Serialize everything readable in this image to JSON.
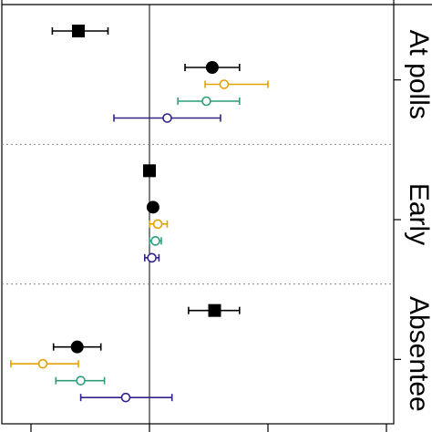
{
  "chart_data": {
    "type": "scatter",
    "title": "",
    "xlabel": "",
    "ylabel": "",
    "xlim": [
      -1.0,
      2.0
    ],
    "reference_line_x": 0,
    "panels": [
      {
        "label": "At polls",
        "rows": [
          {
            "marker": "filled-square",
            "color": "#000000",
            "value": -0.6,
            "lo": -0.82,
            "hi": -0.35
          },
          {
            "marker": "filled-circle",
            "color": "#000000",
            "value": 0.53,
            "lo": 0.3,
            "hi": 0.76
          },
          {
            "marker": "open-circle",
            "color": "#E69F00",
            "value": 0.63,
            "lo": 0.47,
            "hi": 1.0
          },
          {
            "marker": "open-circle",
            "color": "#2E9E77",
            "value": 0.48,
            "lo": 0.24,
            "hi": 0.76
          },
          {
            "marker": "open-circle",
            "color": "#332288",
            "value": 0.15,
            "lo": -0.3,
            "hi": 0.6
          }
        ]
      },
      {
        "label": "Early",
        "rows": [
          {
            "marker": "filled-square",
            "color": "#000000",
            "value": 0.0,
            "lo": 0.0,
            "hi": 0.0
          },
          {
            "marker": "filled-circle",
            "color": "#000000",
            "value": 0.03,
            "lo": 0.03,
            "hi": 0.03
          },
          {
            "marker": "open-circle",
            "color": "#E69F00",
            "value": 0.07,
            "lo": 0.0,
            "hi": 0.15
          },
          {
            "marker": "open-circle",
            "color": "#2E9E77",
            "value": 0.05,
            "lo": 0.0,
            "hi": 0.1
          },
          {
            "marker": "open-circle",
            "color": "#332288",
            "value": 0.02,
            "lo": -0.04,
            "hi": 0.08
          }
        ]
      },
      {
        "label": "Absentee",
        "rows": [
          {
            "marker": "filled-square",
            "color": "#000000",
            "value": 0.55,
            "lo": 0.33,
            "hi": 0.76
          },
          {
            "marker": "filled-circle",
            "color": "#000000",
            "value": -0.61,
            "lo": -0.81,
            "hi": -0.41
          },
          {
            "marker": "open-circle",
            "color": "#E69F00",
            "value": -0.9,
            "lo": -1.17,
            "hi": -0.6
          },
          {
            "marker": "open-circle",
            "color": "#2E9E77",
            "value": -0.58,
            "lo": -0.79,
            "hi": -0.38
          },
          {
            "marker": "open-circle",
            "color": "#332288",
            "value": -0.2,
            "lo": -0.58,
            "hi": 0.19
          }
        ]
      }
    ]
  }
}
